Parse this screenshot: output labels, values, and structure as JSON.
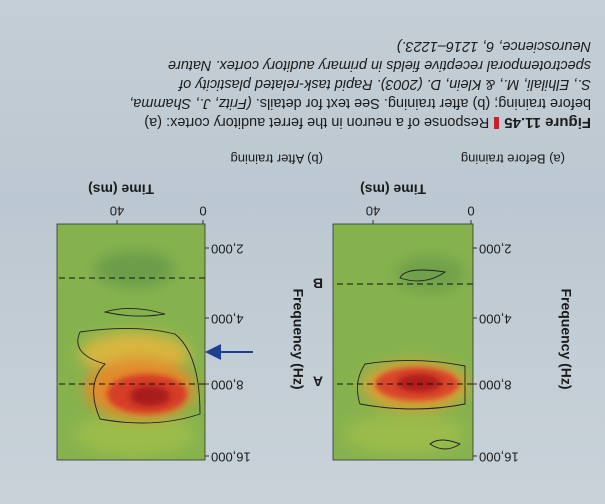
{
  "figure": {
    "number": "Figure 11.45",
    "caption": "Response of a neuron in the ferret auditory cortex: (a) before training; (b) after training. See text for details.",
    "citation": "(Fritz, J., Shamma, S., Elhilali, M., & Klein, D. (2003). Rapid task-related plasticity of spectrotemporal receptive fields in primary auditory cortex. Nature Neuroscience, 6, 1216–1223.)",
    "panels": [
      {
        "label": "(a) Before training",
        "y_axis_label": "Frequency (Hz)",
        "y_ticks": [
          "16,000",
          "8,000",
          "4,000",
          "2,000"
        ],
        "x_axis_label": "Time (ms)",
        "x_ticks": [
          "0",
          "40"
        ],
        "markers": [
          "A",
          "B"
        ]
      },
      {
        "label": "(b) After training",
        "y_axis_label": "Frequency (Hz)",
        "y_ticks": [
          "16,000",
          "8,000",
          "4,000",
          "2,000"
        ],
        "x_axis_label": "Time (ms)",
        "x_ticks": [
          "0",
          "40"
        ]
      }
    ]
  }
}
